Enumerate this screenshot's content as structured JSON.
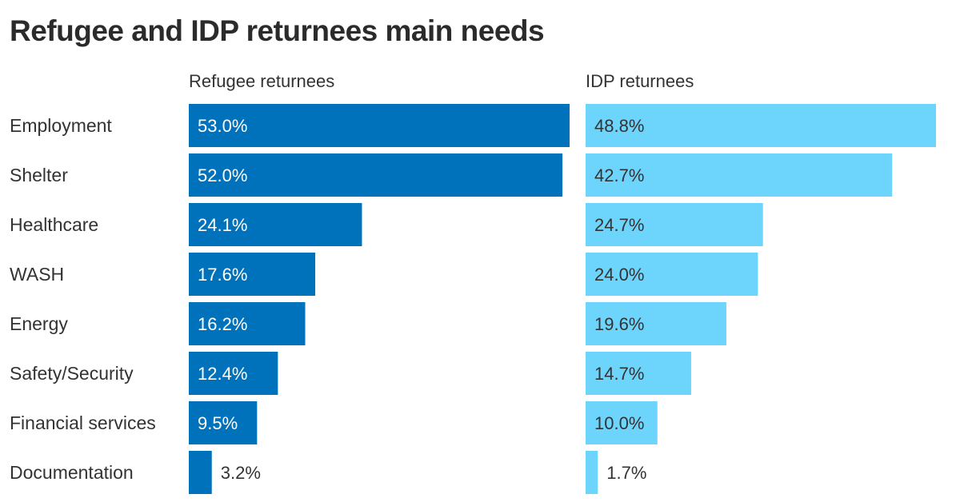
{
  "title": "Refugee and IDP returnees main needs",
  "colors": {
    "refugee": "#0072bb",
    "idp": "#6dd4fc",
    "label_inside_dark_bar": "#ffffff",
    "label_inside_light_bar": "#333333",
    "label_outside": "#333333"
  },
  "chart_data": {
    "type": "bar",
    "orientation": "horizontal",
    "layout": "small-multiples",
    "title": "Refugee and IDP returnees main needs",
    "categories": [
      "Employment",
      "Shelter",
      "Healthcare",
      "WASH",
      "Energy",
      "Safety/Security",
      "Financial services",
      "Documentation"
    ],
    "series": [
      {
        "name": "Refugee returnees",
        "values": [
          53.0,
          52.0,
          24.1,
          17.6,
          16.2,
          12.4,
          9.5,
          3.2
        ],
        "labels": [
          "53.0%",
          "52.0%",
          "24.1%",
          "17.6%",
          "16.2%",
          "12.4%",
          "9.5%",
          "3.2%"
        ]
      },
      {
        "name": "IDP returnees",
        "values": [
          48.8,
          42.7,
          24.7,
          24.0,
          19.6,
          14.7,
          10.0,
          1.7
        ],
        "labels": [
          "48.8%",
          "42.7%",
          "24.7%",
          "24.0%",
          "19.6%",
          "14.7%",
          "10.0%",
          "1.7%"
        ]
      }
    ],
    "xlim": [
      0,
      53
    ],
    "unit": "%",
    "grid": false,
    "legend": "none"
  }
}
